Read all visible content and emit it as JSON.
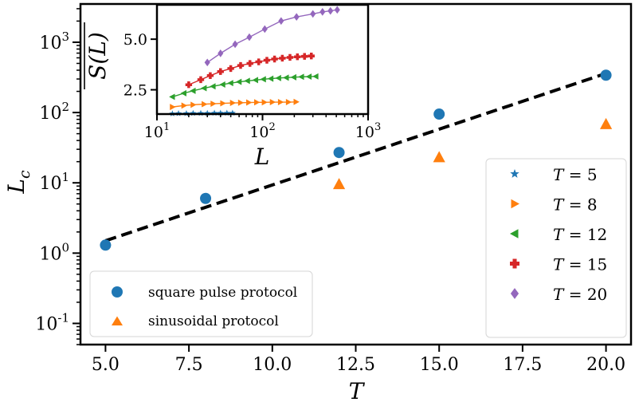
{
  "chart_data": [
    {
      "id": "main",
      "type": "scatter",
      "title": "",
      "xlabel": "T",
      "ylabel": "L",
      "ylabel_subscript": "c",
      "xscale": "linear",
      "yscale": "log",
      "xlim": [
        4.25,
        20.75
      ],
      "ylim": [
        0.05,
        3500
      ],
      "xticks": [
        5,
        7.5,
        10,
        12.5,
        15,
        17.5,
        20
      ],
      "xtick_labels": [
        "5.0",
        "7.5",
        "10.0",
        "12.5",
        "15.0",
        "17.5",
        "20.0"
      ],
      "ytick_exponents": [
        -1,
        0,
        1,
        2,
        3
      ],
      "ytick_base": "10",
      "legend_location": "lower-left",
      "series": [
        {
          "name": "square pulse protocol",
          "marker": "circle",
          "color": "#1f77b4",
          "x": [
            5,
            8,
            12,
            15,
            20
          ],
          "y": [
            1.3,
            6,
            27,
            95,
            340
          ]
        },
        {
          "name": "sinusoidal protocol",
          "marker": "triangle",
          "color": "#ff7f0e",
          "x": [
            12,
            15,
            20
          ],
          "y": [
            9.5,
            23,
            68
          ]
        }
      ],
      "fit_line": {
        "style": "dashed",
        "color": "#000000",
        "x": [
          5,
          20
        ],
        "y": [
          1.5,
          360
        ]
      }
    },
    {
      "id": "inset",
      "type": "line",
      "title": "",
      "xlabel": "L",
      "ylabel": "S(L)",
      "ylabel_overline": true,
      "xscale": "log",
      "yscale": "linear",
      "xlim": [
        10,
        1000
      ],
      "ylim": [
        1.3,
        6.7
      ],
      "xtick_exponents": [
        1,
        2,
        3
      ],
      "xtick_base": "10",
      "yticks": [
        2.5,
        5.0
      ],
      "ytick_labels": [
        "2.5",
        "5.0"
      ],
      "legend_location": "right",
      "series": [
        {
          "name": "T = 5",
          "label_var": "T",
          "label_val": "5",
          "marker": "star",
          "color": "#1f77b4",
          "x": [
            14,
            16,
            19,
            22,
            26,
            30,
            35,
            40,
            46,
            52
          ],
          "y": [
            1.32,
            1.33,
            1.33,
            1.34,
            1.34,
            1.34,
            1.35,
            1.35,
            1.35,
            1.35
          ]
        },
        {
          "name": "T = 8",
          "label_var": "T",
          "label_val": "8",
          "marker": "triangle-right",
          "color": "#ff7f0e",
          "x": [
            14,
            18,
            22,
            28,
            34,
            42,
            52,
            62,
            74,
            88,
            104,
            124,
            148,
            176,
            208
          ],
          "y": [
            1.65,
            1.72,
            1.76,
            1.79,
            1.81,
            1.83,
            1.85,
            1.86,
            1.87,
            1.88,
            1.88,
            1.89,
            1.89,
            1.89,
            1.9
          ]
        },
        {
          "name": "T = 12",
          "label_var": "T",
          "label_val": "12",
          "marker": "triangle-left",
          "color": "#2ca02c",
          "x": [
            14,
            18,
            22,
            28,
            34,
            42,
            50,
            60,
            72,
            86,
            102,
            120,
            142,
            168,
            198,
            234,
            276,
            320
          ],
          "y": [
            2.15,
            2.33,
            2.45,
            2.58,
            2.67,
            2.76,
            2.83,
            2.89,
            2.94,
            2.98,
            3.02,
            3.05,
            3.08,
            3.1,
            3.12,
            3.14,
            3.15,
            3.16
          ]
        },
        {
          "name": "T = 15",
          "label_var": "T",
          "label_val": "15",
          "marker": "plus",
          "color": "#d62728",
          "x": [
            20,
            26,
            32,
            40,
            50,
            62,
            76,
            92,
            110,
            130,
            154,
            182,
            214,
            250,
            290
          ],
          "y": [
            2.75,
            3.0,
            3.2,
            3.4,
            3.55,
            3.7,
            3.8,
            3.88,
            3.96,
            4.02,
            4.06,
            4.1,
            4.13,
            4.15,
            4.17
          ]
        },
        {
          "name": "T = 20",
          "label_var": "T",
          "label_val": "20",
          "marker": "diamond",
          "color": "#9467bd",
          "x": [
            30,
            40,
            55,
            75,
            105,
            150,
            210,
            300,
            370,
            440,
            510
          ],
          "y": [
            3.85,
            4.3,
            4.75,
            5.1,
            5.5,
            5.9,
            6.1,
            6.25,
            6.35,
            6.4,
            6.45
          ]
        }
      ]
    }
  ]
}
